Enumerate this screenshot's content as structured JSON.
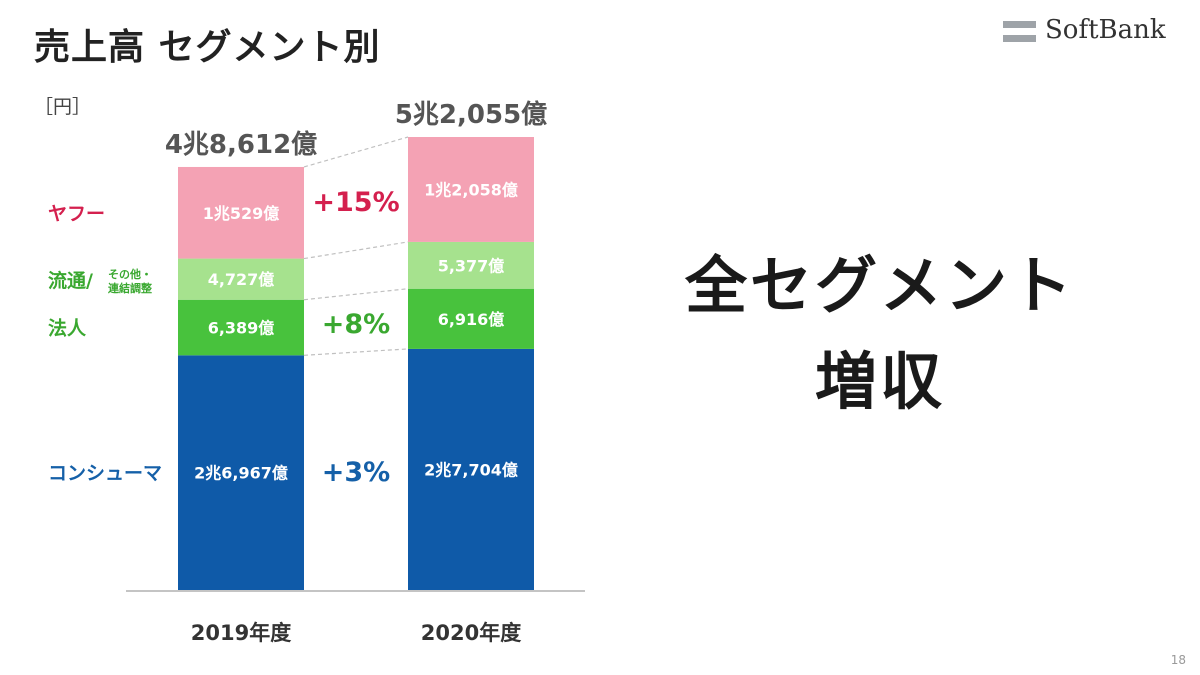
{
  "page": {
    "title": "売上高 セグメント別",
    "logo_text": "SoftBank",
    "headline_line1": "全セグメント",
    "headline_line2": "増収",
    "page_number": "18"
  },
  "chart_data": {
    "type": "bar",
    "stacked": true,
    "unit_label": "［円］",
    "categories": [
      "2019年度",
      "2020年度"
    ],
    "totals": [
      48612,
      52055
    ],
    "total_labels": [
      "4兆8,612億",
      "5兆2,055億"
    ],
    "series": [
      {
        "name": "コンシューマ",
        "color": "#0f5aa8",
        "label_color": "#1560a8",
        "values": [
          26967,
          27704
        ],
        "value_labels": [
          "2兆6,967億",
          "2兆7,704億"
        ],
        "growth": "+3%"
      },
      {
        "name": "法人",
        "color": "#48c23d",
        "label_color": "#3aa830",
        "values": [
          6389,
          6916
        ],
        "value_labels": [
          "6,389億",
          "6,916億"
        ],
        "growth": "+8%"
      },
      {
        "name": "流通/",
        "name_sub_line1": "その他・",
        "name_sub_line2": "連結調整",
        "color": "#a6e28e",
        "label_color": "#3aa830",
        "values": [
          4727,
          5377
        ],
        "value_labels": [
          "4,727億",
          "5,377億"
        ],
        "growth": ""
      },
      {
        "name": "ヤフー",
        "color": "#f4a2b4",
        "label_color": "#d4204e",
        "values": [
          10529,
          12058
        ],
        "value_labels": [
          "1兆529億",
          "1兆2,058億"
        ],
        "growth": "+15%"
      }
    ],
    "legend": "left, aligned with segments",
    "grid": false,
    "ylim": [
      0,
      52055
    ]
  }
}
